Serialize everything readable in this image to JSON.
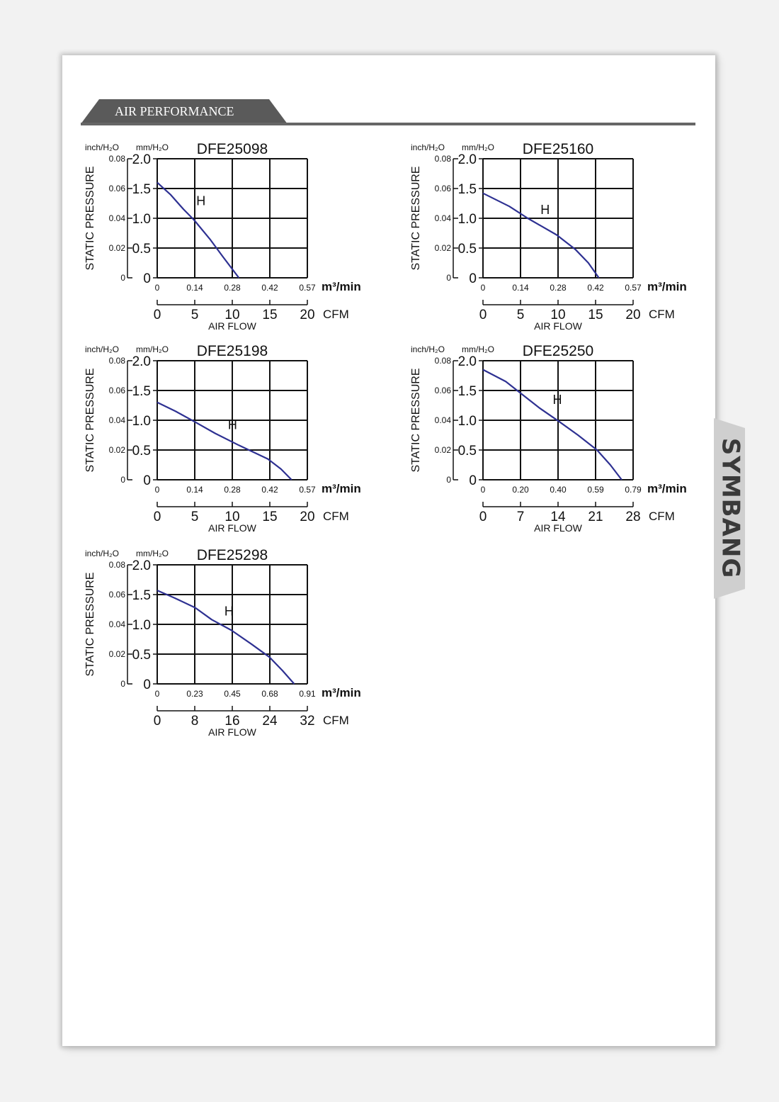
{
  "header": {
    "section_title": "AIR PERFORMANCE"
  },
  "brand": {
    "name": "SYMBANG"
  },
  "colors": {
    "curve": "#2e3192",
    "banner": "#5a5a5a",
    "rule": "#666666",
    "grid": "#111111"
  },
  "chart_data": [
    {
      "type": "line",
      "title": "DFE25098",
      "ylabel": "STATIC PRESSURE",
      "xlabel": "AIR FLOW",
      "y_unit_left": "inch/H₂O",
      "y_unit_right": "mm/H₂O",
      "y_ticks_mm": [
        "2.0",
        "1.5",
        "1.0",
        "0.5",
        "0"
      ],
      "y_ticks_inch": [
        "0.08",
        "0.06",
        "0.04",
        "0.02",
        "0"
      ],
      "x_ticks_m3": [
        "0",
        "0.14",
        "0.28",
        "0.42",
        "0.57"
      ],
      "x_ticks_cfm": [
        "0",
        "5",
        "10",
        "15",
        "20"
      ],
      "x_unit_m3": "m³/min",
      "x_unit_cfm": "CFM",
      "xlim": [
        0,
        0.57
      ],
      "ylim": [
        0,
        2.0
      ],
      "grid": true,
      "series": [
        {
          "name": "H",
          "x": [
            0,
            0.05,
            0.1,
            0.14,
            0.2,
            0.25,
            0.31
          ],
          "y": [
            1.6,
            1.4,
            1.15,
            0.97,
            0.65,
            0.35,
            0.0
          ]
        }
      ]
    },
    {
      "type": "line",
      "title": "DFE25160",
      "ylabel": "STATIC PRESSURE",
      "xlabel": "AIR FLOW",
      "y_unit_left": "inch/H₂O",
      "y_unit_right": "mm/H₂O",
      "y_ticks_mm": [
        "2.0",
        "1.5",
        "1.0",
        "0.5",
        "0"
      ],
      "y_ticks_inch": [
        "0.08",
        "0.06",
        "0.04",
        "0.02",
        "0"
      ],
      "x_ticks_m3": [
        "0",
        "0.14",
        "0.28",
        "0.42",
        "0.57"
      ],
      "x_ticks_cfm": [
        "0",
        "5",
        "10",
        "15",
        "20"
      ],
      "x_unit_m3": "m³/min",
      "x_unit_cfm": "CFM",
      "xlim": [
        0,
        0.57
      ],
      "ylim": [
        0,
        2.0
      ],
      "grid": true,
      "series": [
        {
          "name": "H",
          "x": [
            0,
            0.1,
            0.17,
            0.28,
            0.35,
            0.4,
            0.44
          ],
          "y": [
            1.42,
            1.2,
            1.0,
            0.72,
            0.48,
            0.25,
            0.0
          ]
        }
      ]
    },
    {
      "type": "line",
      "title": "DFE25198",
      "ylabel": "STATIC PRESSURE",
      "xlabel": "AIR FLOW",
      "y_unit_left": "inch/H₂O",
      "y_unit_right": "mm/H₂O",
      "y_ticks_mm": [
        "2.0",
        "1.5",
        "1.0",
        "0.5",
        "0"
      ],
      "y_ticks_inch": [
        "0.08",
        "0.06",
        "0.04",
        "0.02",
        "0"
      ],
      "x_ticks_m3": [
        "0",
        "0.14",
        "0.28",
        "0.42",
        "0.57"
      ],
      "x_ticks_cfm": [
        "0",
        "5",
        "10",
        "15",
        "20"
      ],
      "x_unit_m3": "m³/min",
      "x_unit_cfm": "CFM",
      "xlim": [
        0,
        0.57
      ],
      "ylim": [
        0,
        2.0
      ],
      "grid": true,
      "series": [
        {
          "name": "H",
          "x": [
            0,
            0.07,
            0.14,
            0.22,
            0.31,
            0.42,
            0.47,
            0.51
          ],
          "y": [
            1.3,
            1.15,
            0.98,
            0.78,
            0.58,
            0.35,
            0.18,
            0.0
          ]
        }
      ]
    },
    {
      "type": "line",
      "title": "DFE25250",
      "ylabel": "STATIC PRESSURE",
      "xlabel": "AIR FLOW",
      "y_unit_left": "inch/H₂O",
      "y_unit_right": "mm/H₂O",
      "y_ticks_mm": [
        "2.0",
        "1.5",
        "1.0",
        "0.5",
        "0"
      ],
      "y_ticks_inch": [
        "0.08",
        "0.06",
        "0.04",
        "0.02",
        "0"
      ],
      "x_ticks_m3": [
        "0",
        "0.20",
        "0.40",
        "0.59",
        "0.79"
      ],
      "x_ticks_cfm": [
        "0",
        "7",
        "14",
        "21",
        "28"
      ],
      "x_unit_m3": "m³/min",
      "x_unit_cfm": "CFM",
      "xlim": [
        0,
        0.79
      ],
      "ylim": [
        0,
        2.0
      ],
      "grid": true,
      "series": [
        {
          "name": "H",
          "x": [
            0,
            0.12,
            0.2,
            0.3,
            0.4,
            0.5,
            0.6,
            0.67,
            0.73
          ],
          "y": [
            1.85,
            1.65,
            1.45,
            1.2,
            0.98,
            0.75,
            0.5,
            0.25,
            0.0
          ]
        }
      ]
    },
    {
      "type": "line",
      "title": "DFE25298",
      "ylabel": "STATIC PRESSURE",
      "xlabel": "AIR FLOW",
      "y_unit_left": "inch/H₂O",
      "y_unit_right": "mm/H₂O",
      "y_ticks_mm": [
        "2.0",
        "1.5",
        "1.0",
        "0.5",
        "0"
      ],
      "y_ticks_inch": [
        "0.08",
        "0.06",
        "0.04",
        "0.02",
        "0"
      ],
      "x_ticks_m3": [
        "0",
        "0.23",
        "0.45",
        "0.68",
        "0.91"
      ],
      "x_ticks_cfm": [
        "0",
        "8",
        "16",
        "24",
        "32"
      ],
      "x_unit_m3": "m³/min",
      "x_unit_cfm": "CFM",
      "xlim": [
        0,
        0.91
      ],
      "ylim": [
        0,
        2.0
      ],
      "grid": true,
      "series": [
        {
          "name": "H",
          "x": [
            0,
            0.1,
            0.23,
            0.33,
            0.45,
            0.57,
            0.68,
            0.76,
            0.83
          ],
          "y": [
            1.57,
            1.45,
            1.28,
            1.08,
            0.9,
            0.67,
            0.45,
            0.22,
            0.0
          ]
        }
      ]
    }
  ]
}
